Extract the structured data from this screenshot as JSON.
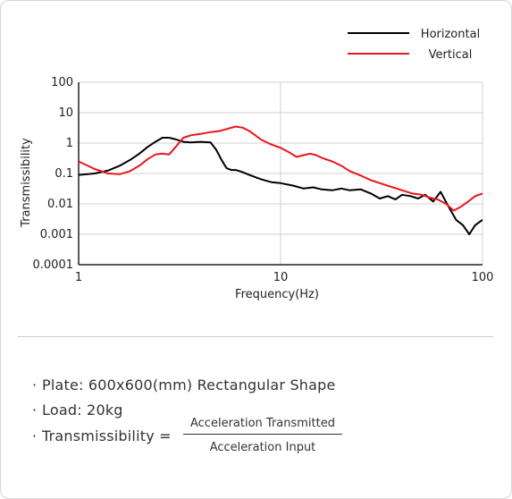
{
  "chart_data": {
    "type": "line",
    "xscale": "log",
    "yscale": "log",
    "xlim": [
      1,
      100
    ],
    "ylim": [
      0.0001,
      100
    ],
    "xlabel": "Frequency(Hz)",
    "ylabel": "Transmissibility",
    "x_ticks": [
      "1",
      "10",
      "100"
    ],
    "y_ticks": [
      "100",
      "10",
      "1",
      "0.1",
      "0.01",
      "0.001",
      "0.0001"
    ],
    "grid": true,
    "legend_position": "top-right",
    "series": [
      {
        "name": "Horizontal",
        "color": "#000000",
        "x": [
          1.0,
          1.2,
          1.4,
          1.6,
          1.8,
          2.0,
          2.2,
          2.4,
          2.6,
          2.8,
          3.0,
          3.3,
          3.6,
          4.0,
          4.5,
          4.8,
          5.1,
          5.4,
          5.7,
          6.0,
          6.5,
          7.0,
          8.0,
          9.0,
          10.0,
          11.5,
          13.0,
          14.5,
          16.0,
          18.0,
          20.0,
          22.0,
          25.0,
          28.0,
          31.0,
          34.0,
          37.0,
          40.0,
          44.0,
          48.0,
          52.0,
          57.0,
          62.0,
          68.0,
          74.0,
          80.0,
          86.0,
          92.0,
          100.0
        ],
        "values": [
          0.09,
          0.1,
          0.125,
          0.18,
          0.28,
          0.45,
          0.75,
          1.1,
          1.5,
          1.5,
          1.35,
          1.1,
          1.05,
          1.1,
          1.05,
          0.6,
          0.28,
          0.15,
          0.13,
          0.13,
          0.11,
          0.09,
          0.065,
          0.052,
          0.048,
          0.04,
          0.032,
          0.035,
          0.03,
          0.028,
          0.032,
          0.028,
          0.03,
          0.022,
          0.015,
          0.018,
          0.014,
          0.02,
          0.018,
          0.015,
          0.02,
          0.012,
          0.025,
          0.008,
          0.003,
          0.002,
          0.001,
          0.002,
          0.003
        ]
      },
      {
        "name": "Vertical",
        "color": "#e8161b",
        "x": [
          1.0,
          1.2,
          1.4,
          1.6,
          1.8,
          2.0,
          2.2,
          2.4,
          2.6,
          2.8,
          3.0,
          3.3,
          3.6,
          4.0,
          4.5,
          5.0,
          5.5,
          6.0,
          6.5,
          7.0,
          7.5,
          8.0,
          9.0,
          10.0,
          11.0,
          12.0,
          13.0,
          14.0,
          15.0,
          16.0,
          18.0,
          20.0,
          22.0,
          25.0,
          28.0,
          32.0,
          36.0,
          40.0,
          45.0,
          50.0,
          55.0,
          60.0,
          66.0,
          72.0,
          78.0,
          85.0,
          92.0,
          100.0
        ],
        "values": [
          0.25,
          0.14,
          0.1,
          0.095,
          0.12,
          0.18,
          0.3,
          0.42,
          0.45,
          0.42,
          0.7,
          1.5,
          1.8,
          2.0,
          2.3,
          2.5,
          3.0,
          3.5,
          3.2,
          2.5,
          1.8,
          1.3,
          0.9,
          0.7,
          0.5,
          0.35,
          0.4,
          0.45,
          0.4,
          0.33,
          0.25,
          0.18,
          0.12,
          0.085,
          0.06,
          0.045,
          0.035,
          0.028,
          0.022,
          0.02,
          0.016,
          0.014,
          0.01,
          0.006,
          0.008,
          0.012,
          0.018,
          0.022
        ]
      }
    ]
  },
  "notes": {
    "bullet": "·",
    "plate": "Plate: 600x600(mm) Rectangular Shape",
    "load": "Load: 20kg",
    "transmissibility_label": "Transmissibility =",
    "numerator": "Acceleration Transmitted",
    "denominator": "Acceleration Input"
  }
}
